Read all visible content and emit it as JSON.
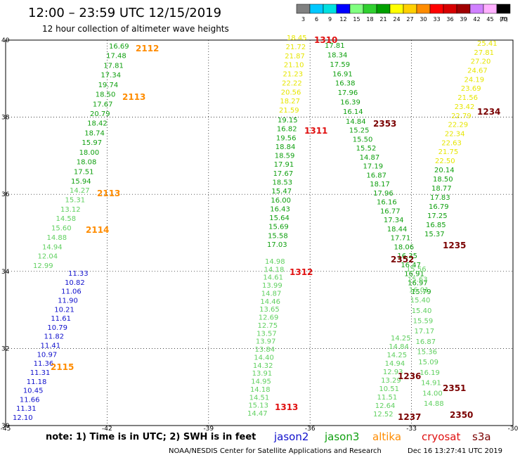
{
  "header": {
    "title": "12:00 – 23:59 UTC 12/15/2019",
    "subtitle": "12 hour collection of altimeter wave heights"
  },
  "footer": {
    "note": "note: 1) Time is in UTC; 2) SWH is in feet",
    "credit": "NOAA/NESDIS Center for Satellite Applications and Research",
    "timestamp": "Dec 16 13:27:41 UTC 2019"
  },
  "legend": [
    {
      "name": "jason2",
      "color": "#1010cc"
    },
    {
      "name": "jason3",
      "color": "#10a010"
    },
    {
      "name": "altika",
      "color": "#ff8c00"
    },
    {
      "name": "cryosat",
      "color": "#e01010"
    },
    {
      "name": "s3a",
      "color": "#7a0000"
    }
  ],
  "color_scale": {
    "bins": [
      {
        "label": "3",
        "color": "#808080"
      },
      {
        "label": "6",
        "color": "#00c8ff"
      },
      {
        "label": "9",
        "color": "#00e0e0"
      },
      {
        "label": "12",
        "color": "#0000ff"
      },
      {
        "label": "15",
        "color": "#80ff80"
      },
      {
        "label": "18",
        "color": "#30d030"
      },
      {
        "label": "21",
        "color": "#00a000"
      },
      {
        "label": "24",
        "color": "#ffff00"
      },
      {
        "label": "27",
        "color": "#ffd000"
      },
      {
        "label": "30",
        "color": "#ff8c00"
      },
      {
        "label": "33",
        "color": "#ff0000"
      },
      {
        "label": "36",
        "color": "#d80000"
      },
      {
        "label": "39",
        "color": "#a00000"
      },
      {
        "label": "42",
        "color": "#d080ff"
      },
      {
        "label": "45",
        "color": "#ffb0ff"
      },
      {
        "label": "70",
        "color": "#000000"
      }
    ],
    "unit": "(ft)"
  },
  "chart_data": {
    "type": "scatter",
    "xlim": [
      -45,
      -30
    ],
    "ylim": [
      30,
      40
    ],
    "x_ticks": [
      "-45",
      "-42",
      "-39",
      "-36",
      "-33",
      "-30"
    ],
    "y_ticks": [
      "40",
      "38",
      "36",
      "34",
      "32",
      "30"
    ],
    "grid": true,
    "tracks": [
      {
        "x": [
          -44.9,
          -44.7,
          -44.5,
          -44.4,
          -44.3,
          -44.2,
          -44.1,
          -44.0,
          -43.9,
          -43.8,
          -43.7,
          -43.6,
          -43.5,
          -43.4,
          -43.3,
          -43.1,
          -43.0,
          -42.9,
          -42.8,
          -42.7,
          -42.6,
          -42.5
        ],
        "y": [
          30.0,
          30.2,
          30.4,
          30.6,
          30.8,
          31.0,
          31.2,
          31.4,
          31.6,
          31.8,
          32.0,
          32.2,
          32.4,
          32.6,
          32.8,
          33.0,
          33.2,
          33.4,
          33.6,
          33.8,
          34.0,
          34.2
        ],
        "values": [
          "12.10",
          "11.31",
          "11.66",
          "10.45",
          "11.18",
          "11.31",
          "11.36",
          "10.97",
          "11.41",
          "11.82",
          "10.79",
          "11.61",
          "10.21",
          "11.90",
          "11.06",
          "10.82",
          "11.33",
          "12.99",
          "12.04",
          "14.94",
          "14.88",
          "15.60"
        ]
      },
      {
        "x": [
          -42.4,
          -42.3,
          -42.2,
          -42.1,
          -42.0,
          -41.9,
          -41.8,
          -41.7,
          -41.6,
          -41.5,
          -41.4,
          -41.3,
          -41.2,
          -41.1,
          -41.0,
          -40.9,
          -40.8,
          -40.7
        ],
        "y": [
          34.6,
          34.8,
          35.0,
          35.2,
          35.4,
          35.6,
          35.8,
          36.0,
          36.2,
          36.4,
          36.6,
          36.8,
          37.0,
          37.2,
          37.4,
          37.6,
          37.8,
          38.0
        ],
        "values": [
          "14.58",
          "13.12",
          "15.31",
          "14.27",
          "15.94",
          "17.51",
          "18.08",
          "18.00",
          "15.97",
          "18.74",
          "18.42",
          "20.79",
          "17.67",
          "18.50",
          "19.74",
          "17.34",
          "17.81",
          "17.48"
        ]
      },
      {
        "x": [
          -36.2,
          -36.2,
          -36.3,
          -36.3,
          -36.4,
          -36.4,
          -36.5,
          -36.5,
          -36.5,
          -36.6,
          -36.6,
          -36.6,
          -36.7,
          -36.7,
          -36.8
        ],
        "y": [
          30.2,
          30.5,
          30.8,
          31.2,
          31.5,
          31.8,
          32.2,
          32.5,
          32.9,
          33.2,
          33.6,
          33.9,
          34.2,
          34.6,
          34.9
        ],
        "values": [
          "14.47",
          "15.13",
          "14.51",
          "14.18",
          "14.95",
          "13.91",
          "14.32",
          "14.40",
          "13.84",
          "13.97",
          "13.57",
          "12.75",
          "12.69",
          "13.65",
          "14.46"
        ]
      }
    ]
  },
  "pass_times": [
    {
      "text": "2112",
      "color": "#ff8c00"
    },
    {
      "text": "2113",
      "color": "#ff8c00"
    },
    {
      "text": "2113",
      "color": "#ff8c00"
    },
    {
      "text": "2114",
      "color": "#ff8c00"
    },
    {
      "text": "2115",
      "color": "#ff8c00"
    },
    {
      "text": "1310",
      "color": "#e01010"
    },
    {
      "text": "1311",
      "color": "#e01010"
    },
    {
      "text": "1312",
      "color": "#e01010"
    },
    {
      "text": "1313",
      "color": "#e01010"
    },
    {
      "text": "2353",
      "color": "#7a0000"
    },
    {
      "text": "2352",
      "color": "#7a0000"
    },
    {
      "text": "2351",
      "color": "#7a0000"
    },
    {
      "text": "2350",
      "color": "#7a0000"
    },
    {
      "text": "1234",
      "color": "#7a0000"
    },
    {
      "text": "1235",
      "color": "#7a0000"
    },
    {
      "text": "1236",
      "color": "#7a0000"
    },
    {
      "text": "1237",
      "color": "#7a0000"
    }
  ],
  "columns": [
    {
      "color": "#1010cc",
      "values": [
        "12.10",
        "11.31",
        "11.66",
        "10.45",
        "11.18",
        "11.31",
        "11.36",
        "10.97",
        "11.41",
        "11.82",
        "10.79",
        "11.61",
        "10.21",
        "11.90",
        "11.06",
        "10.82",
        "11.33"
      ]
    },
    {
      "color": "#60d060",
      "values": [
        "12.99",
        "12.04",
        "14.94",
        "14.88",
        "15.60",
        "14.58",
        "13.12",
        "15.31",
        "14.27"
      ]
    },
    {
      "color": "#10a010",
      "values": [
        "15.94",
        "17.51",
        "18.08",
        "18.00",
        "15.97",
        "18.74",
        "18.42",
        "20.79",
        "17.67",
        "18.50",
        "19.74",
        "17.34",
        "17.81",
        "17.48",
        "16.69"
      ]
    },
    {
      "color": "#60d060",
      "values": [
        "14.47",
        "15.13",
        "14.51",
        "14.18",
        "14.95",
        "13.91",
        "14.32",
        "14.40",
        "13.84",
        "13.97",
        "13.57",
        "12.75",
        "12.69",
        "13.65",
        "14.46",
        "14.87",
        "13.99",
        "14.61",
        "14.18",
        "14.98"
      ]
    },
    {
      "color": "#10a010",
      "values": [
        "17.03",
        "15.58",
        "15.69",
        "15.64",
        "16.43",
        "16.00",
        "15.47",
        "18.53",
        "17.67",
        "17.91",
        "18.59",
        "18.84",
        "19.56",
        "16.82",
        "19.15"
      ]
    },
    {
      "color": "#e6e600",
      "values": [
        "21.59",
        "18.27",
        "20.56",
        "22.22",
        "21.23",
        "21.10",
        "21.87",
        "21.72",
        "18.45"
      ]
    },
    {
      "color": "#10a010",
      "values": [
        "16.14",
        "16.39",
        "17.96",
        "16.38",
        "16.91",
        "17.59",
        "18.34",
        "17.81"
      ]
    },
    {
      "color": "#10a010",
      "values": [
        "14.84",
        "15.25",
        "15.50",
        "15.52",
        "14.87",
        "17.19",
        "16.87",
        "18.17",
        "17.96",
        "16.16",
        "16.77",
        "17.34",
        "18.44",
        "17.71",
        "18.06",
        "16.35",
        "16.47",
        "16.91",
        "16.97",
        "15.79"
      ]
    },
    {
      "color": "#60d060",
      "values": [
        "12.52",
        "12.64",
        "11.51",
        "10.51",
        "13.29",
        "12.93",
        "14.94",
        "14.25",
        "14.84",
        "14.25"
      ]
    },
    {
      "color": "#60d060",
      "values": [
        "14.88",
        "14.00",
        "14.91",
        "16.19",
        "15.09",
        "15.36",
        "16.87",
        "17.17",
        "15.59",
        "15.40",
        "15.40",
        "16.01",
        "15.63",
        "15.56"
      ]
    },
    {
      "color": "#10a010",
      "values": [
        "15.37",
        "16.85",
        "17.25",
        "16.79",
        "17.83",
        "18.77",
        "18.50",
        "20.14"
      ]
    },
    {
      "color": "#e6e600",
      "values": [
        "22.50",
        "21.75",
        "22.63",
        "22.34",
        "22.29",
        "22.79",
        "23.42",
        "21.56",
        "23.69",
        "24.19",
        "24.67",
        "27.20",
        "27.81",
        "25.41"
      ]
    }
  ]
}
